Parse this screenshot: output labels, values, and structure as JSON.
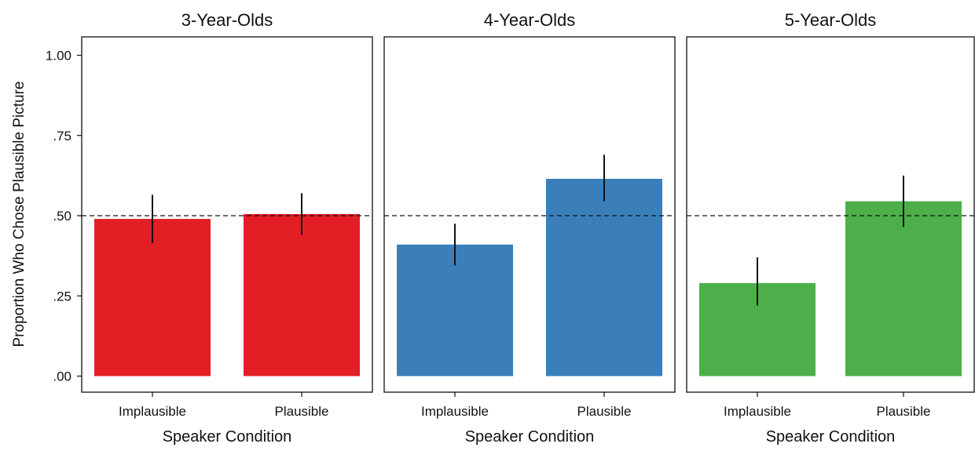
{
  "chart_data": {
    "type": "bar",
    "ylabel": "Proportion Who Chose Plausible Picture",
    "xlabel": "Speaker Condition",
    "ylim": [
      0,
      1
    ],
    "yticks": [
      0,
      0.25,
      0.5,
      0.75,
      1.0
    ],
    "ytick_labels": [
      ".00",
      ".25",
      ".50",
      ".75",
      "1.00"
    ],
    "reference_line": 0.5,
    "categories": [
      "Implausible",
      "Plausible"
    ],
    "panels": [
      {
        "title": "3-Year-Olds",
        "color": "#e31e24",
        "values": [
          0.49,
          0.505
        ],
        "error_low": [
          0.415,
          0.44
        ],
        "error_high": [
          0.565,
          0.57
        ]
      },
      {
        "title": "4-Year-Olds",
        "color": "#3a7fba",
        "values": [
          0.41,
          0.615
        ],
        "error_low": [
          0.345,
          0.545
        ],
        "error_high": [
          0.475,
          0.69
        ]
      },
      {
        "title": "5-Year-Olds",
        "color": "#4daf4a",
        "values": [
          0.29,
          0.545
        ],
        "error_low": [
          0.22,
          0.465
        ],
        "error_high": [
          0.37,
          0.625
        ]
      }
    ]
  }
}
